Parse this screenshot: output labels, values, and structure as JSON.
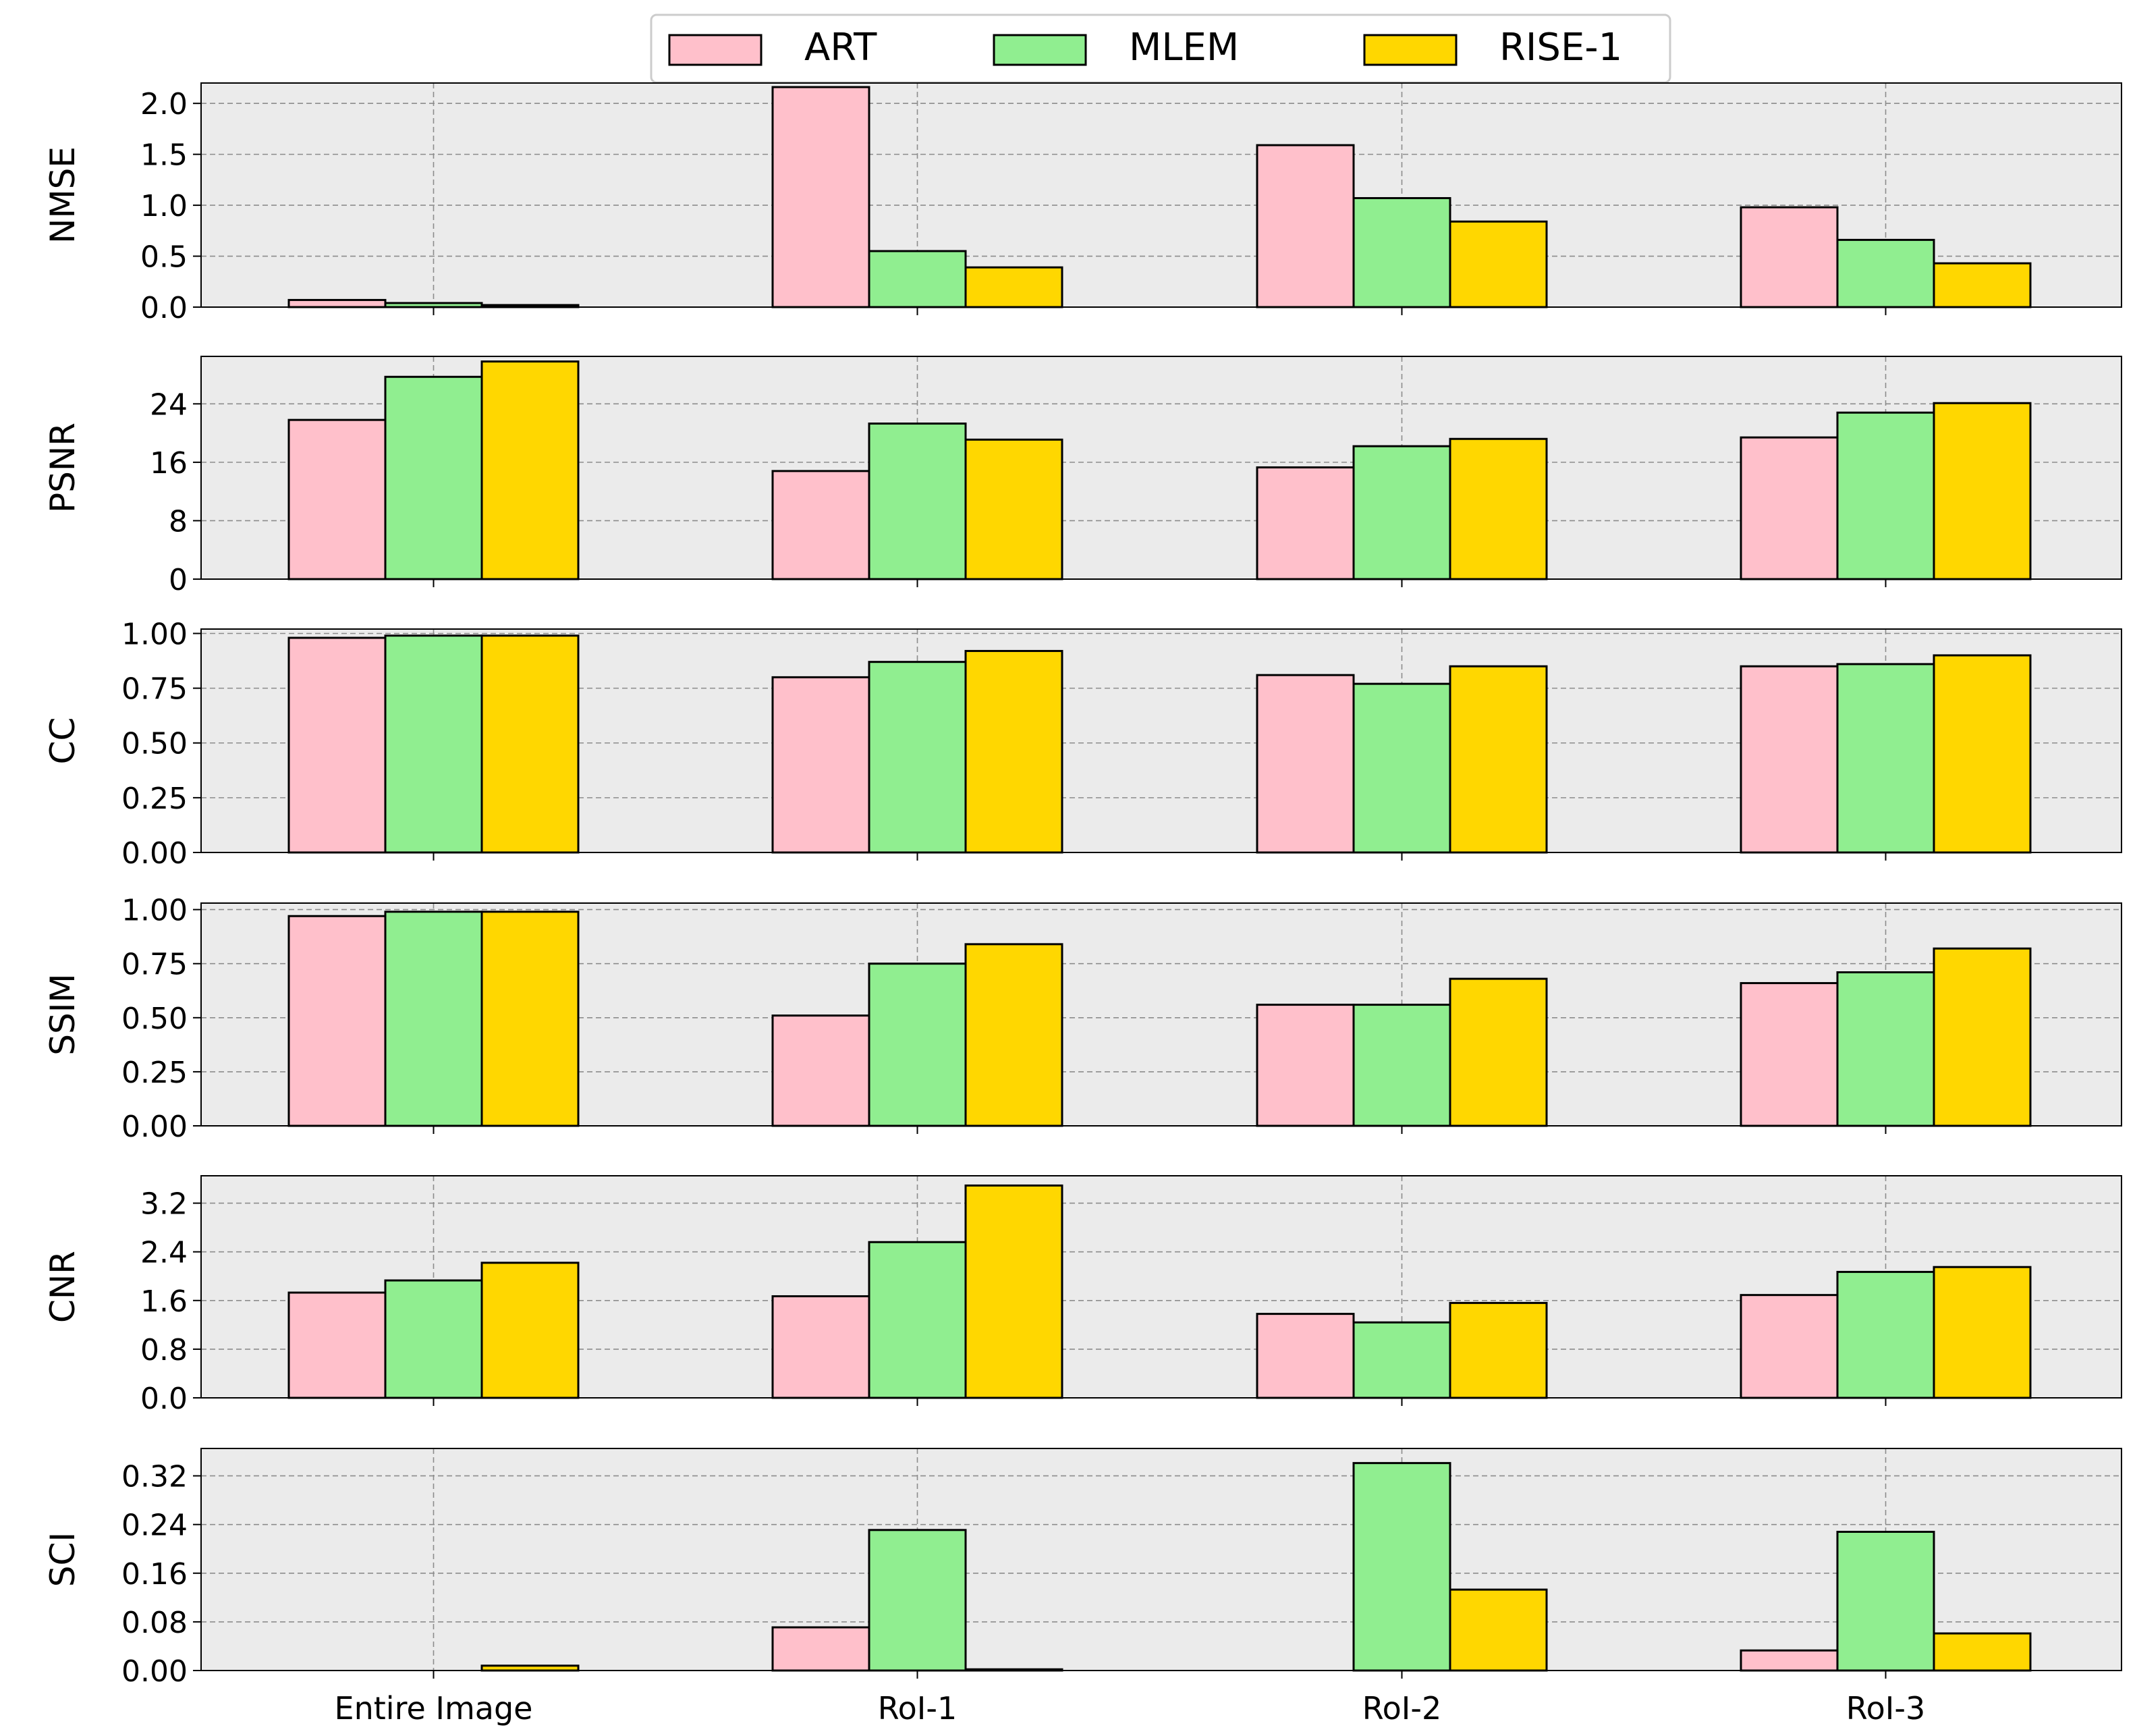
{
  "legend": {
    "entries": [
      {
        "name": "ART",
        "color": "#FFC0CB"
      },
      {
        "name": "MLEM",
        "color": "#90EE90"
      },
      {
        "name": "RISE-1",
        "color": "#FFD700"
      }
    ]
  },
  "chart_data": [
    {
      "type": "bar",
      "ylabel": "NMSE",
      "categories": [
        "Entire Image",
        "RoI-1",
        "RoI-2",
        "RoI-3"
      ],
      "ylim": [
        0,
        2.2
      ],
      "yticks": [
        "0.0",
        "0.5",
        "1.0",
        "1.5",
        "2.0"
      ],
      "series": [
        {
          "name": "ART",
          "values": [
            0.07,
            2.16,
            1.59,
            0.98
          ]
        },
        {
          "name": "MLEM",
          "values": [
            0.04,
            0.55,
            1.07,
            0.66
          ]
        },
        {
          "name": "RISE-1",
          "values": [
            0.02,
            0.39,
            0.84,
            0.43
          ]
        }
      ]
    },
    {
      "type": "bar",
      "ylabel": "PSNR",
      "categories": [
        "Entire Image",
        "RoI-1",
        "RoI-2",
        "RoI-3"
      ],
      "ylim": [
        0,
        30.5
      ],
      "yticks": [
        "0",
        "8",
        "16",
        "24"
      ],
      "series": [
        {
          "name": "ART",
          "values": [
            21.8,
            14.8,
            15.3,
            19.4
          ]
        },
        {
          "name": "MLEM",
          "values": [
            27.7,
            21.3,
            18.2,
            22.8
          ]
        },
        {
          "name": "RISE-1",
          "values": [
            29.8,
            19.1,
            19.2,
            24.1
          ]
        }
      ]
    },
    {
      "type": "bar",
      "ylabel": "CC",
      "categories": [
        "Entire Image",
        "RoI-1",
        "RoI-2",
        "RoI-3"
      ],
      "ylim": [
        0,
        1.02
      ],
      "yticks": [
        "0.00",
        "0.25",
        "0.50",
        "0.75",
        "1.00"
      ],
      "series": [
        {
          "name": "ART",
          "values": [
            0.98,
            0.8,
            0.81,
            0.85
          ]
        },
        {
          "name": "MLEM",
          "values": [
            0.99,
            0.87,
            0.77,
            0.86
          ]
        },
        {
          "name": "RISE-1",
          "values": [
            0.99,
            0.92,
            0.85,
            0.9
          ]
        }
      ]
    },
    {
      "type": "bar",
      "ylabel": "SSIM",
      "categories": [
        "Entire Image",
        "RoI-1",
        "RoI-2",
        "RoI-3"
      ],
      "ylim": [
        0,
        1.03
      ],
      "yticks": [
        "0.00",
        "0.25",
        "0.50",
        "0.75",
        "1.00"
      ],
      "series": [
        {
          "name": "ART",
          "values": [
            0.97,
            0.51,
            0.56,
            0.66
          ]
        },
        {
          "name": "MLEM",
          "values": [
            0.99,
            0.75,
            0.56,
            0.71
          ]
        },
        {
          "name": "RISE-1",
          "values": [
            0.99,
            0.84,
            0.68,
            0.82
          ]
        }
      ]
    },
    {
      "type": "bar",
      "ylabel": "CNR",
      "categories": [
        "Entire Image",
        "RoI-1",
        "RoI-2",
        "RoI-3"
      ],
      "ylim": [
        0,
        3.65
      ],
      "yticks": [
        "0.0",
        "0.8",
        "1.6",
        "2.4",
        "3.2"
      ],
      "series": [
        {
          "name": "ART",
          "values": [
            1.73,
            1.67,
            1.38,
            1.69
          ]
        },
        {
          "name": "MLEM",
          "values": [
            1.93,
            2.56,
            1.24,
            2.07
          ]
        },
        {
          "name": "RISE-1",
          "values": [
            2.22,
            3.49,
            1.56,
            2.15
          ]
        }
      ]
    },
    {
      "type": "bar",
      "ylabel": "SCI",
      "categories": [
        "Entire Image",
        "RoI-1",
        "RoI-2",
        "RoI-3"
      ],
      "ylim": [
        0,
        0.365
      ],
      "yticks": [
        "0.00",
        "0.08",
        "0.16",
        "0.24",
        "0.32"
      ],
      "series": [
        {
          "name": "ART",
          "values": [
            0.0,
            0.071,
            0.0,
            0.033
          ]
        },
        {
          "name": "MLEM",
          "values": [
            0.0,
            0.231,
            0.341,
            0.228
          ]
        },
        {
          "name": "RISE-1",
          "values": [
            0.008,
            0.002,
            0.133,
            0.061
          ]
        }
      ]
    }
  ]
}
